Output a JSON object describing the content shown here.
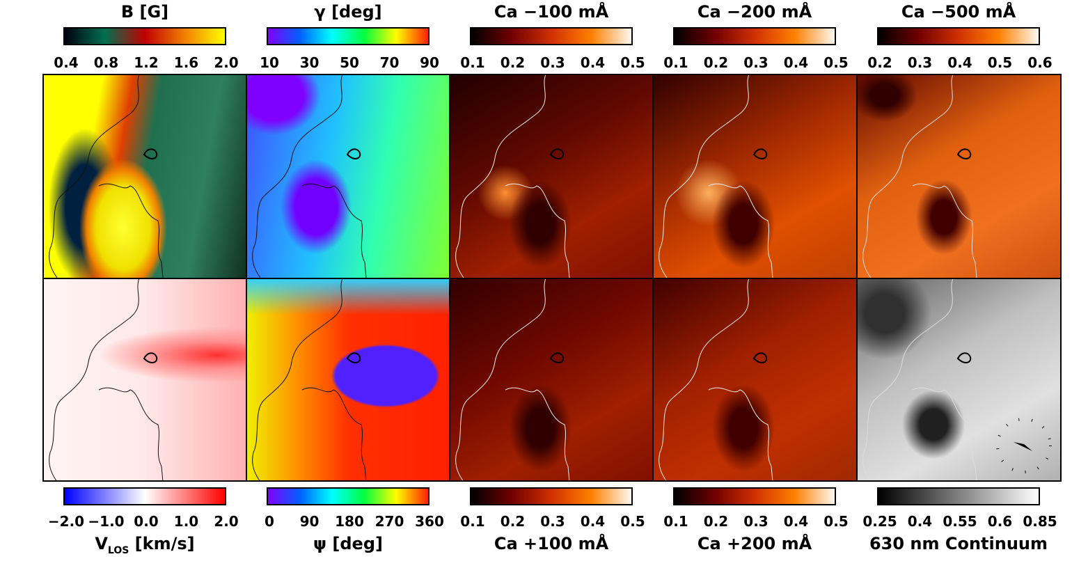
{
  "chart_data": [
    {
      "type": "heatmap",
      "title": "B [G]",
      "colorbar": {
        "ticks": [
          "0.4",
          "0.8",
          "1.2",
          "1.6",
          "2.0"
        ],
        "range": [
          0.4,
          2.0
        ],
        "colormap": [
          "#000010",
          "#007050",
          "#c00000",
          "#f08000",
          "#ffff00"
        ]
      },
      "position": "top-left"
    },
    {
      "type": "heatmap",
      "title": "γ [deg]",
      "colorbar": {
        "ticks": [
          "10",
          "30",
          "50",
          "70",
          "90"
        ],
        "range": [
          10,
          90
        ],
        "colormap": [
          "#8000ff",
          "#0060ff",
          "#00ffff",
          "#00ff40",
          "#ffff00",
          "#ff2000"
        ]
      }
    },
    {
      "type": "heatmap",
      "title": "Ca −100 mÅ",
      "colorbar": {
        "ticks": [
          "0.1",
          "0.2",
          "0.3",
          "0.4",
          "0.5"
        ],
        "range": [
          0.1,
          0.5
        ],
        "colormap": [
          "#000000",
          "#700000",
          "#d03000",
          "#ff8000",
          "#fff8f0"
        ]
      }
    },
    {
      "type": "heatmap",
      "title": "Ca −200 mÅ",
      "colorbar": {
        "ticks": [
          "0.1",
          "0.2",
          "0.3",
          "0.4",
          "0.5"
        ],
        "range": [
          0.1,
          0.5
        ],
        "colormap": [
          "#000000",
          "#700000",
          "#d03000",
          "#ff8000",
          "#fff8f0"
        ]
      }
    },
    {
      "type": "heatmap",
      "title": "Ca −500 mÅ",
      "colorbar": {
        "ticks": [
          "0.2",
          "0.3",
          "0.4",
          "0.5",
          "0.6"
        ],
        "range": [
          0.2,
          0.6
        ],
        "colormap": [
          "#000000",
          "#700000",
          "#d03000",
          "#ff8000",
          "#fff8f0"
        ]
      }
    },
    {
      "type": "heatmap",
      "title_main": "V",
      "title_sub": "LOS",
      "title_rest": " [km/s]",
      "colorbar": {
        "ticks": [
          "−2.0",
          "−1.0",
          "0.0",
          "1.0",
          "2.0"
        ],
        "range": [
          -2.0,
          2.0
        ],
        "colormap": [
          "#0000ff",
          "#ffffff",
          "#ff0000"
        ]
      }
    },
    {
      "type": "heatmap",
      "title": "ψ [deg]",
      "colorbar": {
        "ticks": [
          "0",
          "90",
          "180",
          "270",
          "360"
        ],
        "range": [
          0,
          360
        ],
        "colormap": [
          "#8000ff",
          "#0060ff",
          "#00ffff",
          "#00ff40",
          "#ffff00",
          "#ff2000"
        ]
      }
    },
    {
      "type": "heatmap",
      "title": "Ca +100 mÅ",
      "colorbar": {
        "ticks": [
          "0.1",
          "0.2",
          "0.3",
          "0.4",
          "0.5"
        ],
        "range": [
          0.1,
          0.5
        ],
        "colormap": [
          "#000000",
          "#700000",
          "#d03000",
          "#ff8000",
          "#fff8f0"
        ]
      }
    },
    {
      "type": "heatmap",
      "title": "Ca +200 mÅ",
      "colorbar": {
        "ticks": [
          "0.1",
          "0.2",
          "0.3",
          "0.4",
          "0.5"
        ],
        "range": [
          0.1,
          0.5
        ],
        "colormap": [
          "#000000",
          "#700000",
          "#d03000",
          "#ff8000",
          "#fff8f0"
        ]
      }
    },
    {
      "type": "heatmap",
      "title": "630 nm Continuum",
      "colorbar": {
        "ticks": [
          "0.25",
          "0.4",
          "0.55",
          "0.6",
          "0.85"
        ],
        "range": [
          0.25,
          0.85
        ],
        "colormap": [
          "#000000",
          "#ffffff"
        ]
      }
    }
  ]
}
